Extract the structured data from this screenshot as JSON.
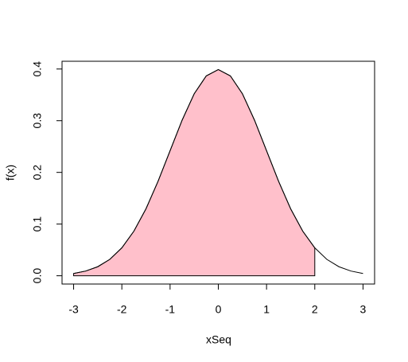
{
  "chart_data": {
    "type": "line",
    "x_label": "xSeq",
    "y_label": "f(x)",
    "x": [
      -3,
      -2.75,
      -2.5,
      -2.25,
      -2,
      -1.75,
      -1.5,
      -1.25,
      -1,
      -0.75,
      -0.5,
      -0.25,
      0,
      0.25,
      0.5,
      0.75,
      1,
      1.25,
      1.5,
      1.75,
      2,
      2.25,
      2.5,
      2.75,
      3
    ],
    "series": [
      {
        "color": "#000000",
        "values": [
          0.0044,
          0.0091,
          0.0175,
          0.0317,
          0.054,
          0.0863,
          0.1295,
          0.1826,
          0.242,
          0.3011,
          0.3521,
          0.3867,
          0.3989,
          0.3867,
          0.3521,
          0.3011,
          0.242,
          0.1826,
          0.1295,
          0.0863,
          0.054,
          0.0317,
          0.0175,
          0.0091,
          0.0044
        ]
      }
    ],
    "area": {
      "color": "#ffc0cb",
      "x": [
        -3,
        -2.75,
        -2.5,
        -2.25,
        -2,
        -1.75,
        -1.5,
        -1.25,
        -1,
        -0.75,
        -0.5,
        -0.25,
        0,
        0.25,
        0.5,
        0.75,
        1,
        1.25,
        1.5,
        1.75,
        2
      ],
      "values": [
        0.0044,
        0.0091,
        0.0175,
        0.0317,
        0.054,
        0.0863,
        0.1295,
        0.1826,
        0.242,
        0.3011,
        0.3521,
        0.3867,
        0.3989,
        0.3867,
        0.3521,
        0.3011,
        0.242,
        0.1826,
        0.1295,
        0.0863,
        0.054
      ]
    },
    "xlim": [
      -3.24,
      3.24
    ],
    "xticks": [
      -3,
      -2,
      -1,
      0,
      1,
      2,
      3
    ],
    "ylim": [
      -0.016,
      0.415
    ],
    "yticks": [
      {
        "value": 0,
        "label": "0.0"
      },
      0.1,
      0.2,
      0.3,
      0.4
    ],
    "grid": false
  }
}
